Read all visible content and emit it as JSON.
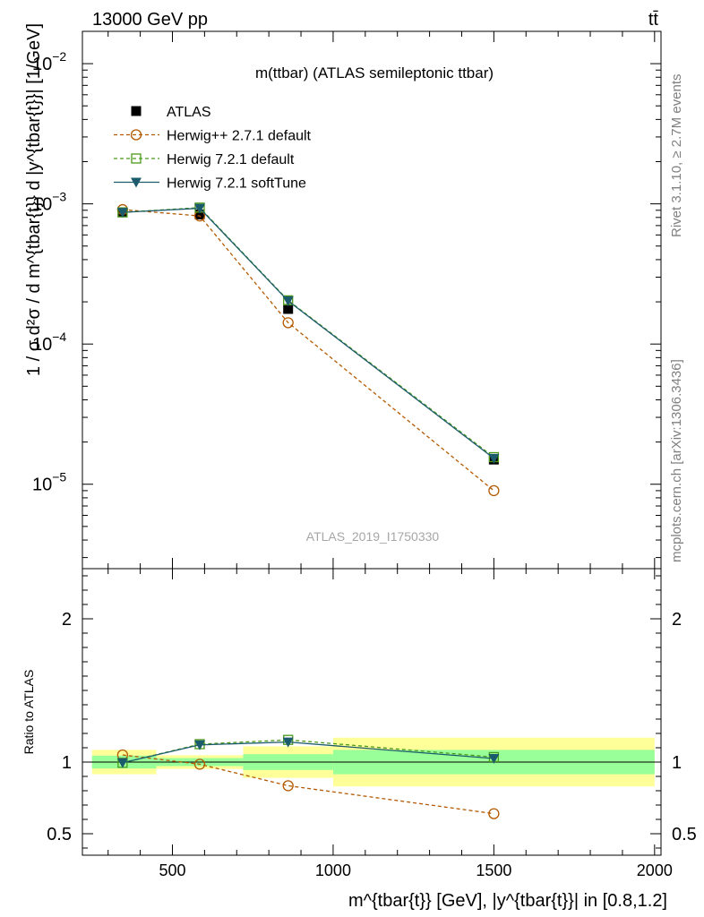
{
  "header": {
    "energy_label": "13000 GeV pp",
    "process_label": "tt̄",
    "rivet_label": "Rivet 3.1.10, ≥ 2.7M events",
    "mcplots_label": "mcplots.cern.ch [arXiv:1306.3436]"
  },
  "chart_data": [
    {
      "type": "line",
      "panel": "main",
      "title": "m(ttbar) (ATLAS semileptonic ttbar)",
      "analysis_label": "ATLAS_2019_I1750330",
      "ylabel": "1 / σ d²σ / d m^{tbar{t}} d |y^{tbar{t}}| [1/GeV]",
      "yscale": "log",
      "xlim": [
        220,
        2020
      ],
      "ylim": [
        2.5e-06,
        0.017
      ],
      "yticks": [
        {
          "value": 1e-05,
          "base": "10",
          "exp": "−5"
        },
        {
          "value": 0.0001,
          "base": "10",
          "exp": "−4"
        },
        {
          "value": 0.001,
          "base": "10",
          "exp": "−3"
        },
        {
          "value": 0.01,
          "base": "10",
          "exp": "−2"
        }
      ],
      "legend_position": "top-left",
      "series": [
        {
          "name": "ATLAS",
          "color": "#000000",
          "marker": "square-filled",
          "line": "none",
          "x": [
            345,
            585,
            860,
            1500
          ],
          "y": [
            0.00087,
            0.00084,
            0.000178,
            1.5e-05
          ]
        },
        {
          "name": "Herwig++ 2.7.1 default",
          "color": "#b35900",
          "marker": "circle-open",
          "line": "dashed",
          "x": [
            345,
            585,
            860,
            1500
          ],
          "y": [
            0.00091,
            0.00082,
            0.000142,
            9e-06
          ]
        },
        {
          "name": "Herwig 7.2.1 default",
          "color": "#4a9a1a",
          "marker": "square-open",
          "line": "dashed",
          "x": [
            345,
            585,
            860,
            1500
          ],
          "y": [
            0.00087,
            0.00094,
            0.000205,
            1.56e-05
          ]
        },
        {
          "name": "Herwig 7.2.1 softTune",
          "color": "#1c5b6b",
          "marker": "triangle-down-filled",
          "line": "solid",
          "x": [
            345,
            585,
            860,
            1500
          ],
          "y": [
            0.00087,
            0.00093,
            0.000203,
            1.53e-05
          ]
        }
      ]
    },
    {
      "type": "line",
      "panel": "ratio",
      "ylabel": "Ratio to ATLAS",
      "xlabel": "m^{tbar{t}} [GeV], |y^{tbar{t}}| in [0.8,1.2]",
      "xlim": [
        220,
        2020
      ],
      "ylim": [
        0.35,
        2.35
      ],
      "xticks": [
        500,
        1000,
        1500,
        2000
      ],
      "xtick_labels": [
        "500",
        "1000",
        "1500",
        "2000"
      ],
      "yticks": [
        0.5,
        1,
        2
      ],
      "ytick_labels": [
        "0.5",
        "1",
        "2"
      ],
      "bands": [
        {
          "x0": 250,
          "x1": 450,
          "green": [
            0.955,
            1.045
          ],
          "yellow": [
            0.915,
            1.085
          ]
        },
        {
          "x0": 450,
          "x1": 720,
          "green": [
            0.972,
            1.028
          ],
          "yellow": [
            0.952,
            1.048
          ]
        },
        {
          "x0": 720,
          "x1": 1000,
          "green": [
            0.945,
            1.055
          ],
          "yellow": [
            0.89,
            1.11
          ]
        },
        {
          "x0": 1000,
          "x1": 2000,
          "green": [
            0.915,
            1.085
          ],
          "yellow": [
            0.83,
            1.17
          ]
        }
      ],
      "series": [
        {
          "name": "Herwig++ 2.7.1 default",
          "color": "#b35900",
          "marker": "circle-open",
          "line": "dashed",
          "x": [
            345,
            585,
            860,
            1500
          ],
          "y": [
            1.05,
            0.985,
            0.835,
            0.64
          ]
        },
        {
          "name": "Herwig 7.2.1 default",
          "color": "#4a9a1a",
          "marker": "square-open",
          "line": "dashed",
          "x": [
            345,
            585,
            860,
            1500
          ],
          "y": [
            0.995,
            1.125,
            1.155,
            1.035
          ]
        },
        {
          "name": "Herwig 7.2.1 softTune",
          "color": "#1c5b6b",
          "marker": "triangle-down-filled",
          "line": "solid",
          "x": [
            345,
            585,
            860,
            1500
          ],
          "y": [
            0.995,
            1.12,
            1.14,
            1.025
          ]
        }
      ]
    }
  ]
}
